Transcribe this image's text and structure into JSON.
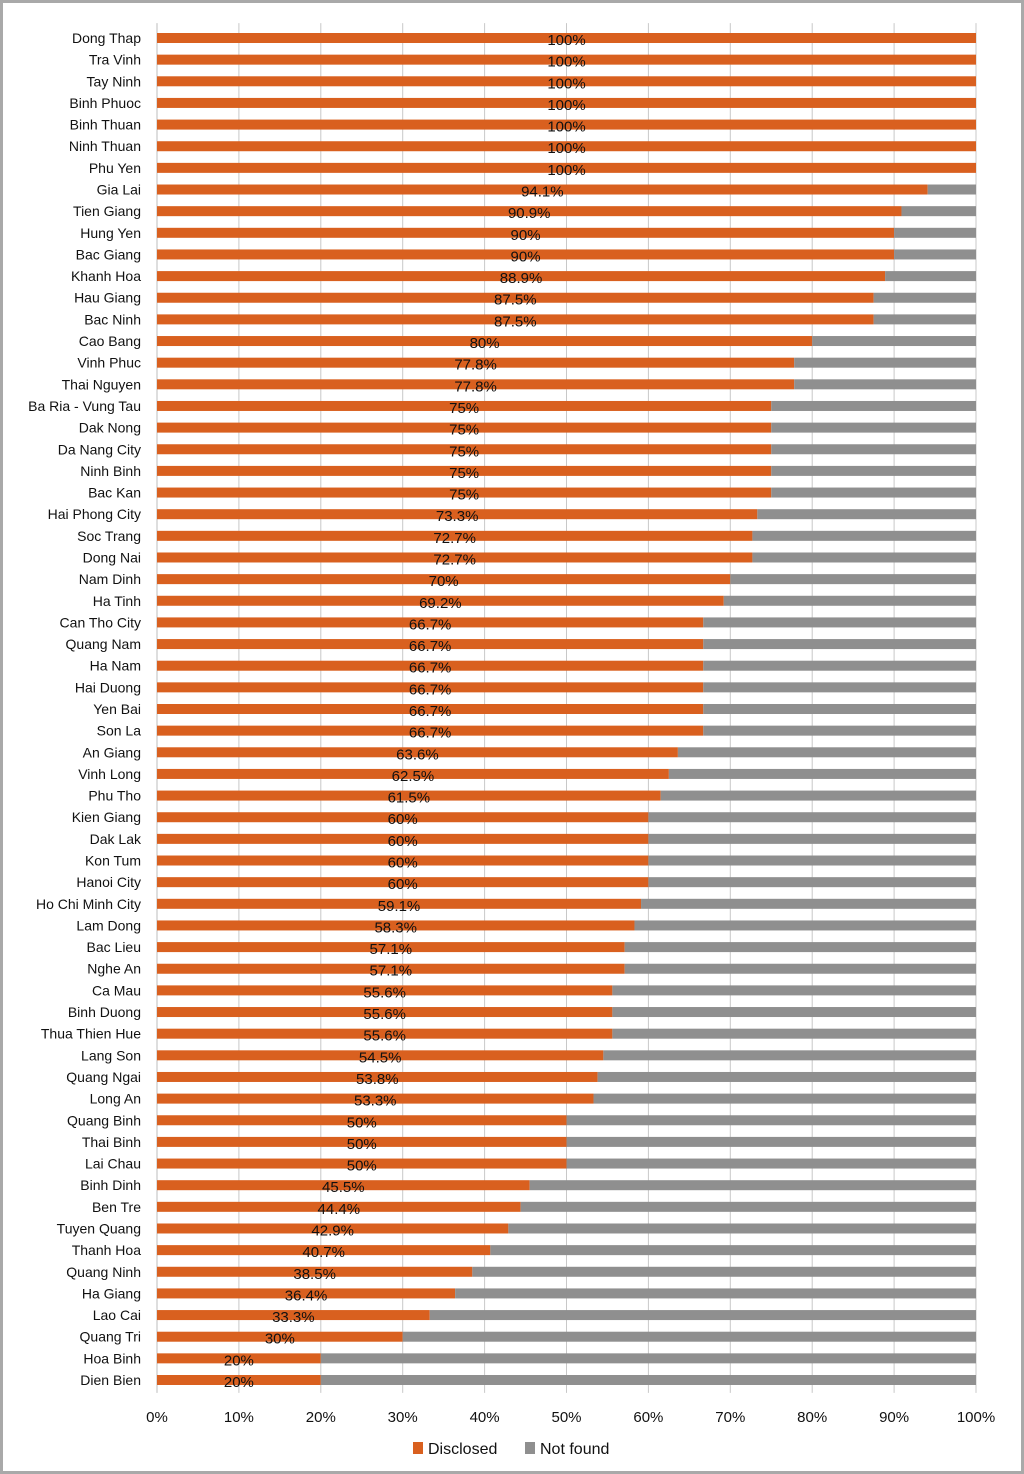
{
  "chart_data": {
    "type": "bar",
    "orientation": "horizontal",
    "stacked": true,
    "title": "",
    "xlabel": "",
    "ylabel": "",
    "xlim": [
      0,
      100
    ],
    "x_ticks": [
      "0%",
      "10%",
      "20%",
      "30%",
      "40%",
      "50%",
      "60%",
      "70%",
      "80%",
      "90%",
      "100%"
    ],
    "grid": true,
    "legend_position": "bottom",
    "colors": {
      "Disclosed": "#d9601f",
      "Not found": "#8f8f8f"
    },
    "categories": [
      "Dong Thap",
      "Tra Vinh",
      "Tay Ninh",
      "Binh Phuoc",
      "Binh Thuan",
      "Ninh Thuan",
      "Phu Yen",
      "Gia Lai",
      "Tien Giang",
      "Hung Yen",
      "Bac Giang",
      "Khanh Hoa",
      "Hau Giang",
      "Bac Ninh",
      "Cao Bang",
      "Vinh Phuc",
      "Thai Nguyen",
      "Ba Ria - Vung Tau",
      "Dak Nong",
      "Da Nang City",
      "Ninh Binh",
      "Bac Kan",
      "Hai Phong City",
      "Soc Trang",
      "Dong Nai",
      "Nam Dinh",
      "Ha Tinh",
      "Can Tho City",
      "Quang Nam",
      "Ha Nam",
      "Hai Duong",
      "Yen Bai",
      "Son La",
      "An Giang",
      "Vinh Long",
      "Phu Tho",
      "Kien Giang",
      "Dak Lak",
      "Kon Tum",
      "Hanoi City",
      "Ho Chi Minh City",
      "Lam Dong",
      "Bac Lieu",
      "Nghe An",
      "Ca Mau",
      "Binh Duong",
      "Thua Thien Hue",
      "Lang Son",
      "Quang Ngai",
      "Long An",
      "Quang Binh",
      "Thai Binh",
      "Lai Chau",
      "Binh Dinh",
      "Ben Tre",
      "Tuyen Quang",
      "Thanh Hoa",
      "Quang Ninh",
      "Ha Giang",
      "Lao Cai",
      "Quang Tri",
      "Hoa Binh",
      "Dien Bien"
    ],
    "series": [
      {
        "name": "Disclosed",
        "values": [
          100,
          100,
          100,
          100,
          100,
          100,
          100,
          94.1,
          90.9,
          90,
          90,
          88.9,
          87.5,
          87.5,
          80,
          77.8,
          77.8,
          75,
          75,
          75,
          75,
          75,
          73.3,
          72.7,
          72.7,
          70,
          69.2,
          66.7,
          66.7,
          66.7,
          66.7,
          66.7,
          66.7,
          63.6,
          62.5,
          61.5,
          60,
          60,
          60,
          60,
          59.1,
          58.3,
          57.1,
          57.1,
          55.6,
          55.6,
          55.6,
          54.5,
          53.8,
          53.3,
          50,
          50,
          50,
          45.5,
          44.4,
          42.9,
          40.7,
          38.5,
          36.4,
          33.3,
          30,
          20,
          20
        ]
      },
      {
        "name": "Not found",
        "values": [
          0,
          0,
          0,
          0,
          0,
          0,
          0,
          5.9,
          9.1,
          10,
          10,
          11.1,
          12.5,
          12.5,
          20,
          22.2,
          22.2,
          25,
          25,
          25,
          25,
          25,
          26.7,
          27.3,
          27.3,
          30,
          30.8,
          33.3,
          33.3,
          33.3,
          33.3,
          33.3,
          33.3,
          36.4,
          37.5,
          38.5,
          40,
          40,
          40,
          40,
          40.9,
          41.7,
          42.9,
          42.9,
          44.4,
          44.4,
          44.4,
          45.5,
          46.2,
          46.7,
          50,
          50,
          50,
          54.5,
          55.6,
          57.1,
          59.3,
          61.5,
          63.6,
          66.7,
          70,
          80,
          80
        ]
      }
    ],
    "data_labels": [
      "100%",
      "100%",
      "100%",
      "100%",
      "100%",
      "100%",
      "100%",
      "94.1%",
      "90.9%",
      "90%",
      "90%",
      "88.9%",
      "87.5%",
      "87.5%",
      "80%",
      "77.8%",
      "77.8%",
      "75%",
      "75%",
      "75%",
      "75%",
      "75%",
      "73.3%",
      "72.7%",
      "72.7%",
      "70%",
      "69.2%",
      "66.7%",
      "66.7%",
      "66.7%",
      "66.7%",
      "66.7%",
      "66.7%",
      "63.6%",
      "62.5%",
      "61.5%",
      "60%",
      "60%",
      "60%",
      "60%",
      "59.1%",
      "58.3%",
      "57.1%",
      "57.1%",
      "55.6%",
      "55.6%",
      "55.6%",
      "54.5%",
      "53.8%",
      "53.3%",
      "50%",
      "50%",
      "50%",
      "45.5%",
      "44.4%",
      "42.9%",
      "40.7%",
      "38.5%",
      "36.4%",
      "33.3%",
      "30%",
      "20%",
      "20%"
    ],
    "legend": [
      "Disclosed",
      "Not found"
    ]
  }
}
